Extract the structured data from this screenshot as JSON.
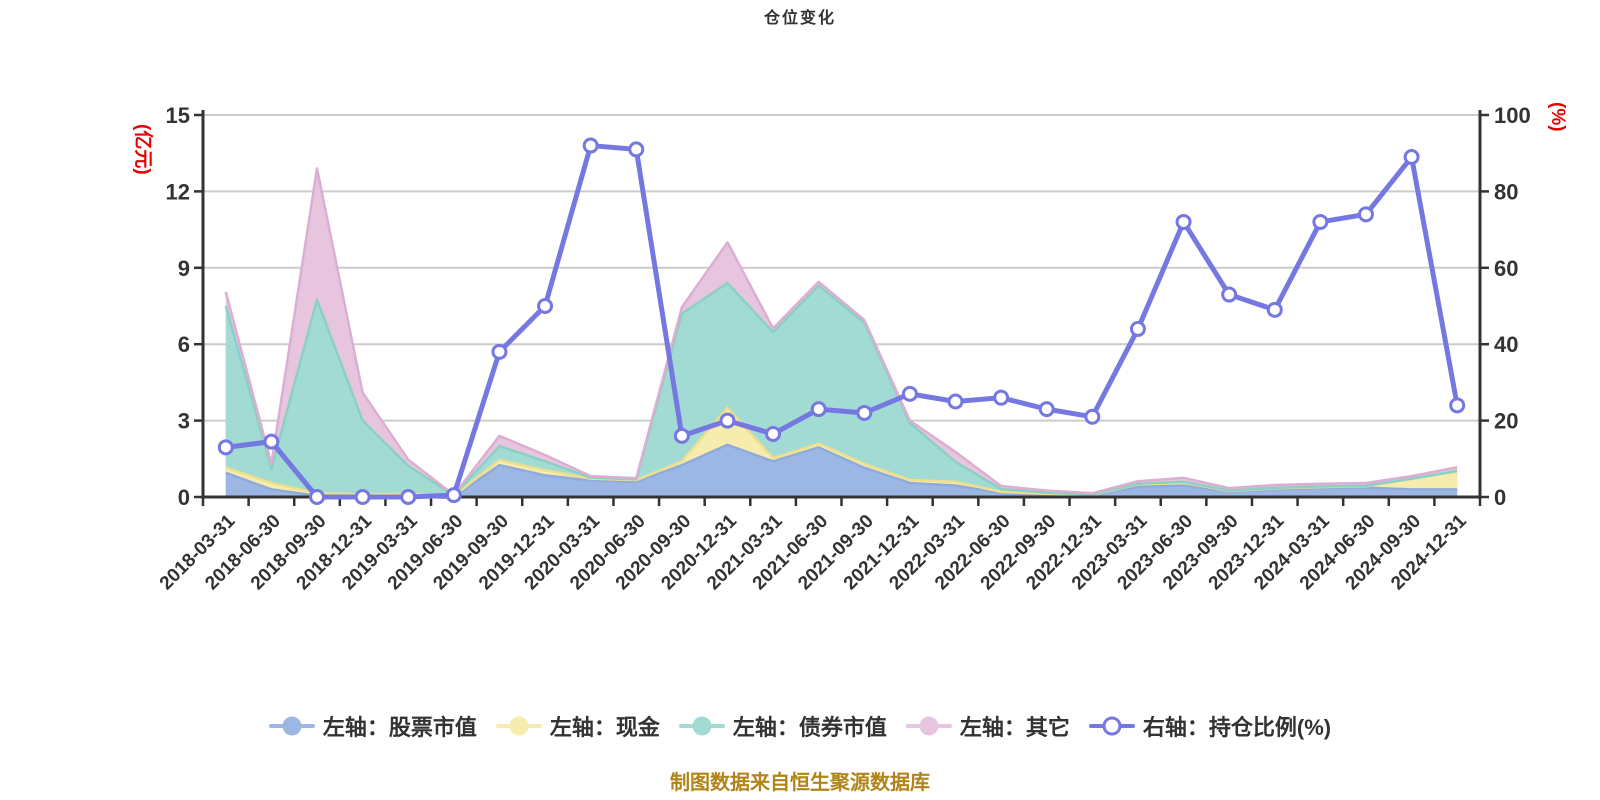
{
  "title": "仓位变化",
  "caption": "制图数据来自恒生聚源数据库",
  "colors": {
    "background": "#ffffff",
    "title_text": "#333333",
    "axis_line": "#333333",
    "axis_label": "#333333",
    "grid_line": "#cccccc",
    "axis_name_red": "#e60000",
    "caption_gold": "#b08418",
    "ratio_line": "#7678e2",
    "marker_fill": "#ffffff"
  },
  "chart_data": {
    "type": "area",
    "subtype": "stacked-area-with-line",
    "grid": true,
    "legend_position": "bottom",
    "categories": [
      "2018-03-31",
      "2018-06-30",
      "2018-09-30",
      "2018-12-31",
      "2019-03-31",
      "2019-06-30",
      "2019-09-30",
      "2019-12-31",
      "2020-03-31",
      "2020-06-30",
      "2020-09-30",
      "2020-12-31",
      "2021-03-31",
      "2021-06-30",
      "2021-09-30",
      "2021-12-31",
      "2022-03-31",
      "2022-06-30",
      "2022-09-30",
      "2022-12-31",
      "2023-03-31",
      "2023-06-30",
      "2023-09-30",
      "2023-12-31",
      "2024-03-31",
      "2024-06-30",
      "2024-09-30",
      "2024-12-31"
    ],
    "left_axis": {
      "name": "(亿元)",
      "min": 0,
      "max": 15,
      "ticks": [
        0,
        3,
        6,
        9,
        12,
        15
      ]
    },
    "right_axis": {
      "name": "(%)",
      "min": 0,
      "max": 100,
      "ticks": [
        0,
        20,
        40,
        60,
        80,
        100
      ]
    },
    "series": [
      {
        "name": "左轴：股票市值",
        "type": "area",
        "stack": true,
        "axis": "left",
        "color": "#9cb7e3",
        "edge_color": "#8fabdc",
        "values": [
          0.95,
          0.3,
          0.05,
          0.02,
          0.02,
          0.01,
          1.25,
          0.85,
          0.65,
          0.6,
          1.25,
          2.05,
          1.4,
          1.95,
          1.15,
          0.55,
          0.45,
          0.15,
          0.1,
          0.05,
          0.4,
          0.45,
          0.2,
          0.3,
          0.35,
          0.37,
          0.3,
          0.3
        ]
      },
      {
        "name": "左轴：现金",
        "type": "area",
        "stack": true,
        "axis": "left",
        "color": "#f6ecae",
        "edge_color": "#efdf8d",
        "values": [
          0.2,
          0.25,
          0.1,
          0.08,
          0.1,
          0.03,
          0.2,
          0.2,
          0.07,
          0.06,
          0.15,
          1.45,
          0.12,
          0.15,
          0.15,
          0.12,
          0.15,
          0.05,
          0.03,
          0.02,
          0.1,
          0.12,
          0.03,
          0.04,
          0.04,
          0.05,
          0.4,
          0.7
        ]
      },
      {
        "name": "左轴：债券市值",
        "type": "area",
        "stack": true,
        "axis": "left",
        "color": "#a2dbd3",
        "edge_color": "#8bd0c6",
        "values": [
          6.35,
          0.55,
          7.6,
          2.9,
          1.1,
          0.02,
          0.55,
          0.35,
          0.04,
          0.03,
          5.8,
          4.9,
          4.95,
          6.2,
          5.55,
          2.23,
          0.78,
          0.11,
          0.04,
          0.02,
          0.02,
          0.03,
          0.02,
          0.02,
          0.02,
          0.02,
          0.02,
          0.02
        ]
      },
      {
        "name": "左轴：其它",
        "type": "area",
        "stack": true,
        "axis": "left",
        "color": "#e8c5df",
        "edge_color": "#dcaed2",
        "values": [
          0.55,
          0.2,
          5.15,
          1.1,
          0.25,
          0.02,
          0.4,
          0.25,
          0.06,
          0.05,
          0.25,
          1.6,
          0.15,
          0.15,
          0.1,
          0.1,
          0.39,
          0.12,
          0.08,
          0.06,
          0.1,
          0.15,
          0.1,
          0.11,
          0.11,
          0.11,
          0.1,
          0.15
        ]
      },
      {
        "name": "右轴：持仓比例(%)",
        "type": "line",
        "stack": false,
        "axis": "right",
        "color": "#7678e2",
        "edge_color": "#7678e2",
        "values": [
          13,
          14.5,
          0,
          0,
          0,
          0.5,
          38,
          50,
          92,
          91,
          16,
          20,
          16.5,
          23,
          22,
          27,
          25,
          26,
          23,
          21,
          44,
          72,
          53,
          49,
          72,
          74,
          89,
          24
        ]
      }
    ]
  }
}
